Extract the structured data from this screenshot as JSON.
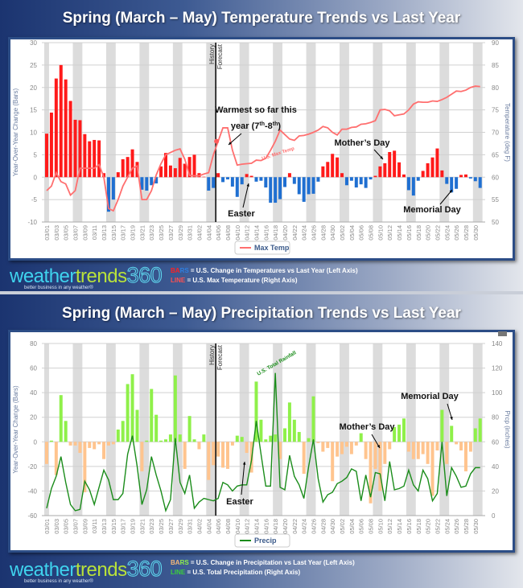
{
  "temp_panel": {
    "title": "Spring (March – May) Temperature Trends vs Last Year",
    "legend_box": "Max Temp",
    "footer": {
      "bars_key_a": "BA",
      "bars_key_b": "RS",
      "bars_text": " = U.S. Change in Temperatures vs Last Year (Left Axis)",
      "line_key": "LINE",
      "line_text": "  = U.S. Max Temperature (Right Axis)"
    }
  },
  "precip_panel": {
    "title": "Spring (March – May) Precipitation Trends vs Last Year",
    "legend_box": "Precip",
    "footer": {
      "bars_key_a": "BA",
      "bars_key_b": "RS",
      "bars_text": " = U.S. Change in Precipitation vs Last Year (Left Axis)",
      "line_key": "LINE",
      "line_text": "  = U.S. Total Precipitation (Right Axis)"
    }
  },
  "logo": {
    "part1": "weather",
    "part2": "trends",
    "part3": "360",
    "tagline": "better business in any weather®"
  },
  "colors": {
    "temp_bar_pos": "#ff1a1a",
    "temp_bar_neg": "#1f6fd1",
    "temp_line": "#ff6f6f",
    "precip_bar_pos": "#8ff04a",
    "precip_bar_neg": "#ffc48e",
    "precip_line": "#1a8c1a",
    "weekend_band": "#dcdcdc"
  },
  "chart_data": [
    {
      "type": "bar+line",
      "ylabel": "Year-Over-Year Change (Bars)",
      "y2label": "Temperature (deg F)",
      "ylim": [
        -10,
        30
      ],
      "yticks": [
        -10,
        -5,
        0,
        5,
        10,
        15,
        20,
        25,
        30
      ],
      "y2lim": [
        50,
        90
      ],
      "y2ticks": [
        50,
        55,
        60,
        65,
        70,
        75,
        80,
        85,
        90
      ],
      "grid": true,
      "legend": "bottom-center",
      "divider": {
        "after": "04/05",
        "left_label": "History",
        "right_label": "Forecast"
      },
      "annotations": [
        {
          "text": "Warmest so far this year (7",
          "sup1": "th",
          "mid": "-8",
          "sup2": "th",
          "end": ")"
        },
        {
          "text": "Mother’s Day"
        },
        {
          "text": "Easter"
        },
        {
          "text": "Memorial Day"
        },
        {
          "text": "U.S. Max Temp"
        }
      ],
      "series": [
        {
          "type": "bar",
          "axis": "left",
          "values": [
            9.7,
            14.4,
            22,
            25,
            21.8,
            17,
            12.8,
            12.7,
            9.6,
            8,
            8.3,
            8.2,
            0.9,
            -7.7,
            -5,
            1.1,
            4,
            4.5,
            6.2,
            3.4,
            -2.8,
            -3,
            -1.8,
            -1.4,
            2.4,
            5.4,
            2.6,
            2,
            4.3,
            3,
            4.5,
            5,
            0.9,
            0.1,
            -3,
            -2.4,
            0.9,
            -1.1,
            -0.5,
            -2.1,
            -4.4,
            -1.6,
            0.7,
            0.3,
            -1,
            -0.8,
            -2.3,
            -5.7,
            -5.7,
            -4.9,
            -2.2,
            0.9,
            -1.5,
            -3.8,
            -5.5,
            -3.8,
            -3.7,
            -1,
            2.4,
            3.4,
            5.2,
            4.4,
            0.9,
            -1.8,
            -0.8,
            -2.3,
            -1.6,
            -2.4,
            -0.5,
            0.3,
            2.4,
            3.1,
            5.6,
            5.9,
            3.3,
            0.6,
            -2.9,
            -4.1,
            -0.8,
            1.4,
            3.1,
            4.4,
            6.4,
            1.5,
            -1.5,
            -3.4,
            -2.6,
            0.5,
            0.6,
            -0.3,
            -0.9,
            -2.4
          ]
        },
        {
          "type": "line",
          "axis": "right",
          "name": "Max Temp",
          "values": [
            57,
            58,
            61,
            59,
            58.5,
            56,
            57,
            62,
            62,
            62,
            62,
            62.8,
            60,
            53,
            52.5,
            55,
            58,
            60,
            62,
            62.5,
            55,
            55,
            57,
            60.5,
            63,
            65,
            65.5,
            66,
            66.3,
            64,
            60.4,
            60.3,
            60.3,
            60.7,
            61,
            65,
            68,
            71,
            71,
            66,
            62.7,
            62.9,
            63,
            63.1,
            63.8,
            63.7,
            64.2,
            66,
            68,
            70.5,
            69.5,
            68.5,
            68.2,
            69.2,
            69.3,
            69.6,
            70,
            70.5,
            71.3,
            71,
            70,
            69.4,
            70.7,
            70.7,
            71.1,
            71.2,
            71.8,
            71.9,
            72.2,
            72.6,
            75,
            75.1,
            74.8,
            73.7,
            73.9,
            74.1,
            75,
            76.3,
            76.8,
            76.7,
            76.7,
            77,
            76.9,
            77.3,
            77.8,
            78.5,
            79.2,
            79.1,
            79.4,
            80,
            80.3,
            80.2
          ]
        }
      ]
    },
    {
      "type": "bar+line",
      "ylabel": "Year-Over-Year Change (Bars)",
      "y2label": "Prcp (inches)",
      "ylim": [
        -60,
        80
      ],
      "yticks": [
        -60,
        -40,
        -20,
        0,
        20,
        40,
        60,
        80
      ],
      "y2lim": [
        0,
        140
      ],
      "y2ticks": [
        0,
        20,
        40,
        60,
        80,
        100,
        120,
        140
      ],
      "grid": true,
      "legend": "bottom-center",
      "divider": {
        "after": "04/05",
        "left_label": "History",
        "right_label": "Forecast"
      },
      "annotations": [
        {
          "text": "U.S. Total Rainfall"
        },
        {
          "text": "Mother’s Day"
        },
        {
          "text": "Memorial Day"
        },
        {
          "text": "Easter"
        }
      ],
      "series": [
        {
          "type": "bar",
          "axis": "left",
          "values": [
            -18,
            1,
            -27,
            38,
            17,
            -3,
            -3,
            -9,
            -41,
            -5,
            -6,
            -2,
            -14,
            -3,
            -2,
            10,
            17,
            47,
            55,
            26,
            -24,
            1,
            43,
            22,
            1,
            2,
            6,
            54,
            6,
            -22,
            21,
            2,
            -6,
            6,
            -31,
            -19,
            -12,
            -21,
            -22,
            -3,
            5,
            4,
            -9,
            -25,
            49,
            18,
            2,
            5,
            6,
            -14,
            11,
            32,
            18,
            8,
            -26,
            3,
            37,
            -1,
            -8,
            -5,
            -32,
            -12,
            -10,
            -4,
            -10,
            -3,
            7,
            -14,
            -50,
            -22,
            -40,
            -18,
            -6,
            12,
            14,
            19,
            -8,
            -14,
            -14,
            -10,
            -18,
            -44,
            -7,
            26,
            -18,
            13,
            -2,
            -7,
            -24,
            -8,
            11,
            19
          ]
        },
        {
          "type": "line",
          "axis": "right",
          "name": "Precip",
          "values": [
            6,
            22,
            32,
            48,
            27,
            9,
            4,
            5,
            28,
            21,
            9,
            23,
            37,
            29,
            13,
            13,
            18,
            50,
            65,
            40,
            9,
            21,
            48,
            33,
            20,
            4,
            13,
            63,
            27,
            18,
            33,
            6,
            11,
            14,
            13,
            12,
            14,
            27,
            25,
            20,
            24,
            25,
            25,
            45,
            77,
            50,
            24,
            24,
            116,
            23,
            21,
            49,
            32,
            25,
            14,
            40,
            62,
            30,
            11,
            17,
            19,
            26,
            28,
            31,
            38,
            36,
            12,
            33,
            15,
            35,
            34,
            12,
            44,
            21,
            22,
            24,
            37,
            25,
            20,
            37,
            30,
            12,
            18,
            60,
            16,
            39,
            32,
            23,
            24,
            34,
            39,
            39
          ]
        }
      ]
    }
  ],
  "categories": [
    "03/01",
    "03/02",
    "03/03",
    "03/04",
    "03/05",
    "03/06",
    "03/07",
    "03/08",
    "03/09",
    "03/10",
    "03/11",
    "03/12",
    "03/13",
    "03/14",
    "03/15",
    "03/16",
    "03/17",
    "03/18",
    "03/19",
    "03/20",
    "03/21",
    "03/22",
    "03/23",
    "03/24",
    "03/25",
    "03/26",
    "03/27",
    "03/28",
    "03/29",
    "03/30",
    "03/31",
    "04/01",
    "04/02",
    "04/03",
    "04/04",
    "04/05",
    "04/06",
    "04/07",
    "04/08",
    "04/09",
    "04/10",
    "04/11",
    "04/12",
    "04/13",
    "04/14",
    "04/15",
    "04/16",
    "04/17",
    "04/18",
    "04/19",
    "04/20",
    "04/21",
    "04/22",
    "04/23",
    "04/24",
    "04/25",
    "04/26",
    "04/27",
    "04/28",
    "04/29",
    "04/30",
    "05/01",
    "05/02",
    "05/03",
    "05/04",
    "05/05",
    "05/06",
    "05/07",
    "05/08",
    "05/09",
    "05/10",
    "05/11",
    "05/12",
    "05/13",
    "05/14",
    "05/15",
    "05/16",
    "05/17",
    "05/18",
    "05/19",
    "05/20",
    "05/21",
    "05/22",
    "05/23",
    "05/24",
    "05/25",
    "05/26",
    "05/27",
    "05/28",
    "05/29",
    "05/30",
    "05/31"
  ]
}
